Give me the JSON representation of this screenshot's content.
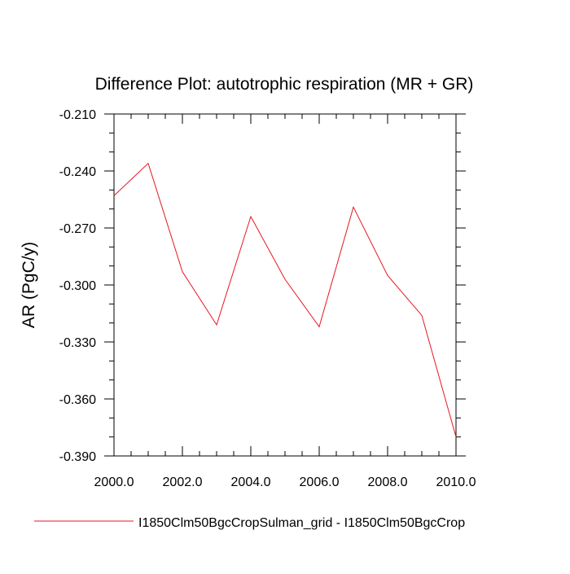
{
  "chart_data": {
    "type": "line",
    "title": "Difference Plot: autotrophic respiration (MR + GR)",
    "xlabel": "",
    "ylabel": "AR  (PgC/y)",
    "xlim": [
      2000,
      2010
    ],
    "ylim": [
      -0.39,
      -0.21
    ],
    "xticks": [
      2000,
      2002,
      2004,
      2006,
      2008,
      2010
    ],
    "xtick_labels": [
      "2000.0",
      "2002.0",
      "2004.0",
      "2006.0",
      "2008.0",
      "2010.0"
    ],
    "yticks": [
      -0.21,
      -0.24,
      -0.27,
      -0.3,
      -0.33,
      -0.36,
      -0.39
    ],
    "ytick_labels": [
      "-0.210",
      "-0.240",
      "-0.270",
      "-0.300",
      "-0.330",
      "-0.360",
      "-0.390"
    ],
    "grid": false,
    "legend_position": "bottom",
    "x": [
      2000,
      2001,
      2002,
      2003,
      2004,
      2005,
      2006,
      2007,
      2008,
      2009,
      2010
    ],
    "series": [
      {
        "name": "I1850Clm50BgcCropSulman_grid - I1850Clm50BgcCrop",
        "color": "#e8161e",
        "values": [
          -0.253,
          -0.236,
          -0.293,
          -0.321,
          -0.264,
          -0.297,
          -0.322,
          -0.259,
          -0.295,
          -0.316,
          -0.38
        ]
      }
    ]
  }
}
